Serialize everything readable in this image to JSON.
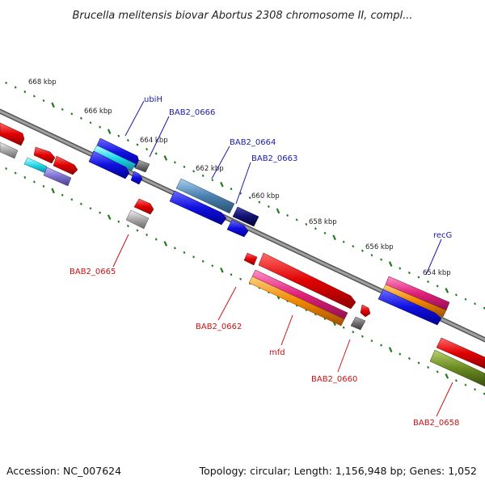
{
  "title": "Brucella melitensis biovar Abortus 2308 chromosome II, compl...",
  "footer": {
    "accession": "Accession: NC_007624",
    "summary": "Topology: circular; Length: 1,156,948 bp; Genes: 1,052"
  },
  "tick_labels": [
    "668 kbp",
    "666 kbp",
    "664 kbp",
    "662 kbp",
    "660 kbp",
    "658 kbp",
    "656 kbp",
    "654 kbp"
  ],
  "gene_labels_top": [
    "ubiH",
    "BAB2_0666",
    "BAB2_0664",
    "BAB2_0663",
    "recG"
  ],
  "gene_labels_bottom": [
    "BAB2_0665",
    "BAB2_0662",
    "mfd",
    "BAB2_0660",
    "BAB2_0658"
  ],
  "colors": {
    "backbone": "#8a8a8a",
    "tick_green": "#1f7a1f",
    "gene_red": "#e00000",
    "gene_blue": "#1010e0",
    "gene_cyan": "#20d8e8",
    "gene_grey": "#9a9a9a",
    "gene_navy": "#101070",
    "gene_steel": "#4a80b0",
    "gene_magenta": "#e0207a",
    "gene_orange": "#f08800",
    "gene_olive": "#6a8a20",
    "gene_purple": "#7a70cc",
    "label_top": "#1a1aa8",
    "label_bottom": "#cc1111"
  }
}
